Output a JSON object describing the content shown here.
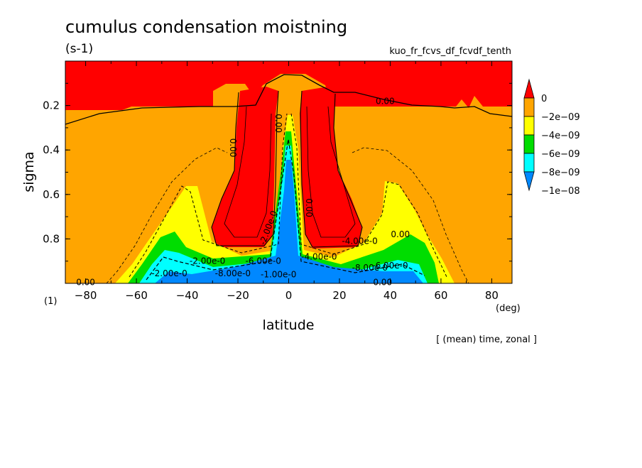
{
  "chart_data": {
    "type": "heatmap",
    "title": "cumulus condensation moistning",
    "units": "(s-1)",
    "run_name": "kuo_fr_fcvs_df_fcvdf_tenth",
    "xlabel": "latitude",
    "ylabel": "sigma",
    "x_unit": "(deg)",
    "y_unit": "(1)",
    "footer": "[ (mean) time, zonal ]",
    "xlim": [
      -88,
      88
    ],
    "ylim": [
      0.0,
      1.0
    ],
    "y_inverted": true,
    "x_ticks": [
      -80,
      -60,
      -40,
      -20,
      0,
      20,
      40,
      60,
      80
    ],
    "x_tick_labels": [
      "−80",
      "−60",
      "−40",
      "−20",
      "0",
      "20",
      "40",
      "60",
      "80"
    ],
    "y_ticks": [
      0.2,
      0.4,
      0.6,
      0.8
    ],
    "y_tick_labels": [
      "0.2",
      "0.4",
      "0.6",
      "0.8"
    ],
    "colorbar": {
      "labels": [
        "0",
        "−2e−09",
        "−4e−09",
        "−6e−09",
        "−8e−09",
        "−1e−08"
      ],
      "colors": [
        "#ff0000",
        "#ffa500",
        "#ffff00",
        "#00dd00",
        "#00ffff",
        "#0088ff"
      ],
      "levels": [
        0,
        -2e-09,
        -4e-09,
        -6e-09,
        -8e-09,
        -1e-08
      ]
    },
    "contour_labels": [
      "0.00",
      "0.00",
      "0.00",
      "0.00",
      "0.00",
      "-2.00e-0",
      "-2.00e-0",
      "-2.00e-0",
      "-6.00e-0",
      "-8.00e-0",
      "-4.00e-0",
      "-4.00e-0",
      "-8.00e-0",
      "-6.00e-0",
      "-1.00e-0",
      "0.00",
      "0.00"
    ]
  }
}
